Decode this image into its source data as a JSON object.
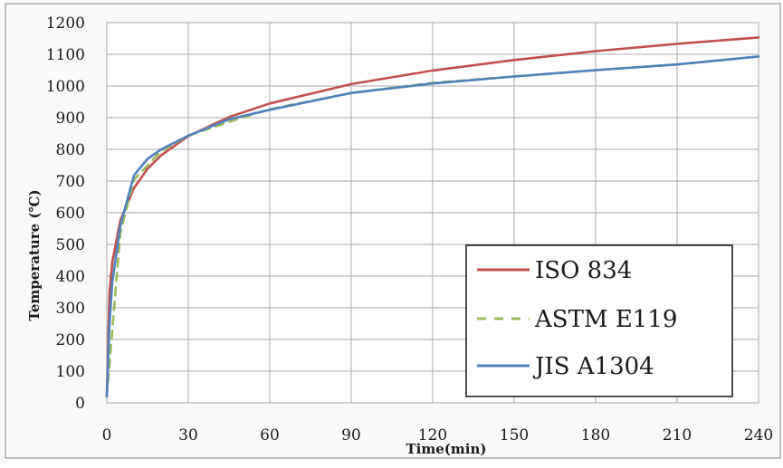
{
  "chart_data": {
    "type": "line",
    "title": "",
    "xlabel": "Time(min)",
    "ylabel": "Temperature (℃)",
    "xlim": [
      0,
      240
    ],
    "ylim": [
      0,
      1200
    ],
    "x_ticks": [
      "0",
      "30",
      "60",
      "90",
      "120",
      "150",
      "180",
      "210",
      "240"
    ],
    "y_ticks": [
      "0",
      "100",
      "200",
      "300",
      "400",
      "500",
      "600",
      "700",
      "800",
      "900",
      "1000",
      "1100",
      "1200"
    ],
    "grid": true,
    "legend_position": "bottom-right",
    "series": [
      {
        "name": "ISO 834",
        "color": "#c0504d",
        "style": "solid",
        "x": [
          0,
          1,
          2,
          5,
          10,
          15,
          20,
          30,
          45,
          60,
          90,
          120,
          150,
          180,
          210,
          240
        ],
        "y": [
          20,
          349,
          444,
          576,
          678,
          739,
          781,
          842,
          902,
          945,
          1006,
          1049,
          1082,
          1110,
          1133,
          1153
        ]
      },
      {
        "name": "ASTM E119",
        "color": "#9bbb59",
        "style": "dashed",
        "x": [
          0,
          5,
          10,
          20,
          30,
          45,
          60,
          90,
          120,
          150,
          180,
          210,
          240
        ],
        "y": [
          20,
          538,
          704,
          795,
          843,
          887,
          927,
          978,
          1010,
          1030,
          1050,
          1068,
          1093
        ]
      },
      {
        "name": "JIS A1304",
        "color": "#4f81bd",
        "style": "solid",
        "x": [
          0,
          1,
          2,
          5,
          10,
          15,
          20,
          30,
          45,
          60,
          90,
          120,
          150,
          180,
          210,
          240
        ],
        "y": [
          20,
          250,
          380,
          560,
          718,
          770,
          800,
          843,
          895,
          925,
          978,
          1008,
          1030,
          1050,
          1068,
          1093
        ]
      }
    ]
  }
}
